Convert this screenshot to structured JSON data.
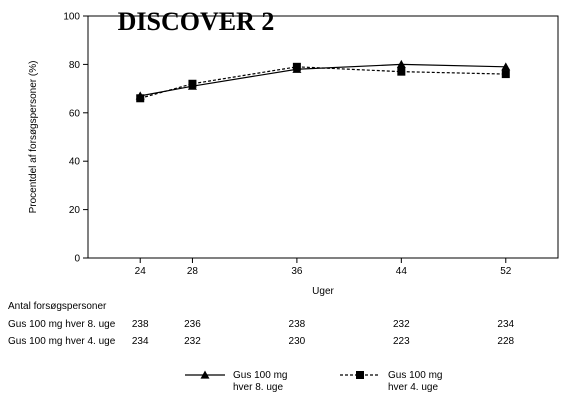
{
  "chart_data": {
    "type": "line",
    "title": "DISCOVER 2",
    "xlabel": "Uger",
    "ylabel": "Procentdel af forsøgspersoner (%)",
    "x": [
      24,
      28,
      36,
      44,
      52
    ],
    "ylim": [
      0,
      100
    ],
    "yticks": [
      0,
      20,
      40,
      60,
      80,
      100
    ],
    "grid": false,
    "legend_position": "bottom",
    "series": [
      {
        "name": "Gus 100 mg hver 8. uge",
        "legend_lines": [
          "Gus 100 mg",
          "hver 8. uge"
        ],
        "values": [
          67,
          71,
          78,
          80,
          79
        ],
        "marker": "triangle",
        "line_style": "solid",
        "color": "#000000"
      },
      {
        "name": "Gus 100 mg hver 4. uge",
        "legend_lines": [
          "Gus 100 mg",
          "hver 4. uge"
        ],
        "values": [
          66,
          72,
          79,
          77,
          76
        ],
        "marker": "square",
        "line_style": "dashed",
        "color": "#000000"
      }
    ],
    "at_risk": {
      "header": "Antal forsøgspersoner",
      "rows": [
        {
          "label": "Gus 100 mg hver 8. uge",
          "values": [
            "238",
            "236",
            "238",
            "232",
            "234"
          ]
        },
        {
          "label": "Gus 100 mg hver 4. uge",
          "values": [
            "234",
            "232",
            "230",
            "223",
            "228"
          ]
        }
      ]
    }
  }
}
